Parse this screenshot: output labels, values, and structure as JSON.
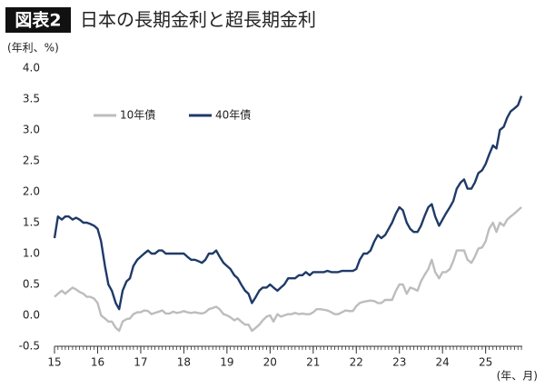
{
  "chart_data": {
    "type": "line",
    "figure_label": "図表2",
    "title": "日本の長期金利と超長期金利",
    "y_label": "(年利、%)",
    "x_label": "(年、月)",
    "xlim": [
      15,
      25.85
    ],
    "xticks": [
      15,
      16,
      17,
      18,
      19,
      20,
      21,
      22,
      23,
      24,
      25
    ],
    "ylim": [
      -0.5,
      4.0
    ],
    "yticks": [
      {
        "value": 4,
        "label": "4.0"
      },
      3.5,
      {
        "value": 3,
        "label": "3.0"
      },
      2.5,
      {
        "value": 2,
        "label": "2.0"
      },
      1.5,
      {
        "value": 1,
        "label": "1.0"
      },
      0.5,
      {
        "value": 0,
        "label": "0.0"
      },
      -0.5
    ],
    "grid": false,
    "legend": "upper-left",
    "x": [
      15,
      15.08,
      15.17,
      15.25,
      15.33,
      15.42,
      15.5,
      15.58,
      15.67,
      15.75,
      15.83,
      15.92,
      16,
      16.08,
      16.17,
      16.25,
      16.33,
      16.42,
      16.5,
      16.58,
      16.67,
      16.75,
      16.83,
      16.92,
      17,
      17.08,
      17.17,
      17.25,
      17.33,
      17.42,
      17.5,
      17.58,
      17.67,
      17.75,
      17.83,
      17.92,
      18,
      18.08,
      18.17,
      18.25,
      18.33,
      18.42,
      18.5,
      18.58,
      18.67,
      18.75,
      18.83,
      18.92,
      19,
      19.08,
      19.17,
      19.25,
      19.33,
      19.42,
      19.5,
      19.58,
      19.67,
      19.75,
      19.83,
      19.92,
      20,
      20.08,
      20.17,
      20.25,
      20.33,
      20.42,
      20.5,
      20.58,
      20.67,
      20.75,
      20.83,
      20.92,
      21,
      21.08,
      21.17,
      21.25,
      21.33,
      21.42,
      21.5,
      21.58,
      21.67,
      21.75,
      21.83,
      21.92,
      22,
      22.08,
      22.17,
      22.25,
      22.33,
      22.42,
      22.5,
      22.58,
      22.67,
      22.75,
      22.83,
      22.92,
      23,
      23.08,
      23.17,
      23.25,
      23.33,
      23.42,
      23.5,
      23.58,
      23.67,
      23.75,
      23.83,
      23.92,
      24,
      24.08,
      24.17,
      24.25,
      24.33,
      24.42,
      24.5,
      24.58,
      24.67,
      24.75,
      24.83,
      24.92,
      25,
      25.08,
      25.17,
      25.25,
      25.33,
      25.42,
      25.5,
      25.58,
      25.67,
      25.75,
      25.83
    ],
    "series": [
      {
        "name": "10年債",
        "color": "#bdbdbd",
        "values": [
          0.3,
          0.35,
          0.4,
          0.35,
          0.4,
          0.45,
          0.42,
          0.38,
          0.35,
          0.3,
          0.3,
          0.27,
          0.2,
          0.0,
          -0.05,
          -0.1,
          -0.1,
          -0.2,
          -0.25,
          -0.1,
          -0.06,
          -0.05,
          0.02,
          0.05,
          0.05,
          0.08,
          0.07,
          0.02,
          0.04,
          0.06,
          0.08,
          0.03,
          0.03,
          0.06,
          0.04,
          0.05,
          0.07,
          0.05,
          0.04,
          0.05,
          0.04,
          0.03,
          0.05,
          0.1,
          0.12,
          0.14,
          0.1,
          0.02,
          0.0,
          -0.03,
          -0.08,
          -0.05,
          -0.1,
          -0.15,
          -0.15,
          -0.25,
          -0.2,
          -0.15,
          -0.08,
          -0.02,
          0.0,
          -0.1,
          0.02,
          -0.02,
          0.0,
          0.02,
          0.02,
          0.04,
          0.02,
          0.03,
          0.02,
          0.02,
          0.05,
          0.1,
          0.1,
          0.09,
          0.08,
          0.05,
          0.02,
          0.02,
          0.05,
          0.08,
          0.07,
          0.07,
          0.15,
          0.2,
          0.22,
          0.23,
          0.24,
          0.23,
          0.2,
          0.2,
          0.25,
          0.25,
          0.25,
          0.4,
          0.5,
          0.5,
          0.35,
          0.45,
          0.43,
          0.4,
          0.55,
          0.65,
          0.75,
          0.9,
          0.7,
          0.6,
          0.7,
          0.7,
          0.75,
          0.88,
          1.05,
          1.05,
          1.05,
          0.9,
          0.85,
          0.95,
          1.08,
          1.1,
          1.2,
          1.4,
          1.5,
          1.35,
          1.5,
          1.45,
          1.55,
          1.6,
          1.65,
          1.7,
          1.75
        ]
      },
      {
        "name": "40年債",
        "color": "#1f3a68",
        "values": [
          1.25,
          1.6,
          1.55,
          1.6,
          1.6,
          1.55,
          1.58,
          1.55,
          1.5,
          1.5,
          1.48,
          1.45,
          1.4,
          1.2,
          0.8,
          0.5,
          0.4,
          0.2,
          0.1,
          0.4,
          0.55,
          0.6,
          0.8,
          0.9,
          0.95,
          1.0,
          1.05,
          1.0,
          1.0,
          1.05,
          1.05,
          1.0,
          1.0,
          1.0,
          1.0,
          1.0,
          1.0,
          0.95,
          0.9,
          0.9,
          0.88,
          0.85,
          0.9,
          1.0,
          1.0,
          1.05,
          0.95,
          0.85,
          0.8,
          0.75,
          0.65,
          0.6,
          0.5,
          0.4,
          0.35,
          0.2,
          0.3,
          0.4,
          0.45,
          0.45,
          0.5,
          0.45,
          0.4,
          0.45,
          0.5,
          0.6,
          0.6,
          0.6,
          0.65,
          0.65,
          0.7,
          0.65,
          0.7,
          0.7,
          0.7,
          0.7,
          0.72,
          0.7,
          0.7,
          0.7,
          0.72,
          0.72,
          0.72,
          0.72,
          0.75,
          0.9,
          1.0,
          1.0,
          1.05,
          1.2,
          1.3,
          1.25,
          1.3,
          1.4,
          1.5,
          1.65,
          1.75,
          1.7,
          1.5,
          1.4,
          1.35,
          1.35,
          1.45,
          1.6,
          1.75,
          1.8,
          1.6,
          1.45,
          1.55,
          1.65,
          1.75,
          1.85,
          2.05,
          2.15,
          2.2,
          2.05,
          2.05,
          2.15,
          2.3,
          2.35,
          2.45,
          2.6,
          2.75,
          2.7,
          3.0,
          3.05,
          3.2,
          3.3,
          3.35,
          3.4,
          3.55
        ]
      }
    ]
  }
}
